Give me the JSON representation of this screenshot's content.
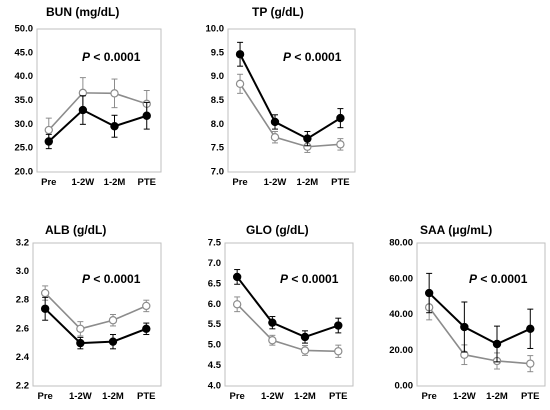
{
  "chart_data": [
    {
      "type": "line",
      "title": "BUN (mg/dL)",
      "annotation_p": "P",
      "annotation_rest": " < 0.0001",
      "categories": [
        "Pre",
        "1-2W",
        "1-2M",
        "PTE"
      ],
      "ylim": [
        20.0,
        50.0
      ],
      "yticks": [
        20.0,
        25.0,
        30.0,
        35.0,
        40.0,
        45.0,
        50.0
      ],
      "ytick_labels": [
        "20.0",
        "25.0",
        "30.0",
        "35.0",
        "40.0",
        "45.0",
        "50.0"
      ],
      "series": [
        {
          "marker": "filled",
          "values": [
            26.4,
            33.0,
            29.6,
            31.8
          ],
          "err": [
            1.5,
            3.0,
            2.3,
            2.8
          ]
        },
        {
          "marker": "open",
          "values": [
            28.8,
            36.6,
            36.5,
            34.3
          ],
          "err": [
            2.5,
            3.2,
            3.0,
            2.8
          ]
        }
      ]
    },
    {
      "type": "line",
      "title": "TP (g/dL)",
      "annotation_p": "P",
      "annotation_rest": " < 0.0001",
      "categories": [
        "Pre",
        "1-2W",
        "1-2M",
        "PTE"
      ],
      "ylim": [
        7.0,
        10.0
      ],
      "yticks": [
        7.0,
        7.5,
        8.0,
        8.5,
        9.0,
        9.5,
        10.0
      ],
      "ytick_labels": [
        "7.0",
        "7.5",
        "8.0",
        "8.5",
        "9.0",
        "9.5",
        "10.0"
      ],
      "series": [
        {
          "marker": "filled",
          "values": [
            9.47,
            8.05,
            7.7,
            8.13
          ],
          "err": [
            0.25,
            0.15,
            0.15,
            0.2
          ]
        },
        {
          "marker": "open",
          "values": [
            8.85,
            7.73,
            7.53,
            7.58
          ],
          "err": [
            0.2,
            0.12,
            0.12,
            0.12
          ]
        }
      ]
    },
    {
      "type": "line",
      "title": "ALB (g/dL)",
      "annotation_p": "P",
      "annotation_rest": " < 0.0001",
      "categories": [
        "Pre",
        "1-2W",
        "1-2M",
        "PTE"
      ],
      "ylim": [
        2.2,
        3.2
      ],
      "yticks": [
        2.2,
        2.4,
        2.6,
        2.8,
        3.0,
        3.2
      ],
      "ytick_labels": [
        "2.2",
        "2.4",
        "2.6",
        "2.8",
        "3.0",
        "3.2"
      ],
      "series": [
        {
          "marker": "filled",
          "values": [
            2.74,
            2.5,
            2.51,
            2.6
          ],
          "err": [
            0.08,
            0.04,
            0.05,
            0.04
          ]
        },
        {
          "marker": "open",
          "values": [
            2.85,
            2.6,
            2.66,
            2.76
          ],
          "err": [
            0.05,
            0.05,
            0.04,
            0.04
          ]
        }
      ]
    },
    {
      "type": "line",
      "title": "GLO (g/dL)",
      "annotation_p": "P",
      "annotation_rest": " < 0.0001",
      "categories": [
        "Pre",
        "1-2W",
        "1-2M",
        "PTE"
      ],
      "ylim": [
        4.0,
        7.5
      ],
      "yticks": [
        4.0,
        4.5,
        5.0,
        5.5,
        6.0,
        6.5,
        7.0,
        7.5
      ],
      "ytick_labels": [
        "4.0",
        "4.5",
        "5.0",
        "5.5",
        "6.0",
        "6.5",
        "7.0",
        "7.5"
      ],
      "series": [
        {
          "marker": "filled",
          "values": [
            6.67,
            5.55,
            5.2,
            5.48
          ],
          "err": [
            0.18,
            0.15,
            0.15,
            0.18
          ]
        },
        {
          "marker": "open",
          "values": [
            6.0,
            5.12,
            4.87,
            4.85
          ],
          "err": [
            0.18,
            0.12,
            0.12,
            0.15
          ]
        }
      ]
    },
    {
      "type": "line",
      "title": "SAA (μg/mL)",
      "annotation_p": "P",
      "annotation_rest": " < 0.0001",
      "categories": [
        "Pre",
        "1-2W",
        "1-2M",
        "PTE"
      ],
      "ylim": [
        0.0,
        80.0
      ],
      "yticks": [
        0.0,
        20.0,
        40.0,
        60.0,
        80.0
      ],
      "ytick_labels": [
        "0.00",
        "20.00",
        "40.00",
        "60.00",
        "80.00"
      ],
      "series": [
        {
          "marker": "filled",
          "values": [
            52.0,
            33.0,
            23.5,
            32.0
          ],
          "err": [
            11.0,
            14.0,
            10.0,
            11.0
          ]
        },
        {
          "marker": "open",
          "values": [
            44.0,
            17.5,
            14.0,
            12.5
          ],
          "err": [
            7.0,
            5.5,
            4.5,
            4.5
          ]
        }
      ]
    }
  ]
}
